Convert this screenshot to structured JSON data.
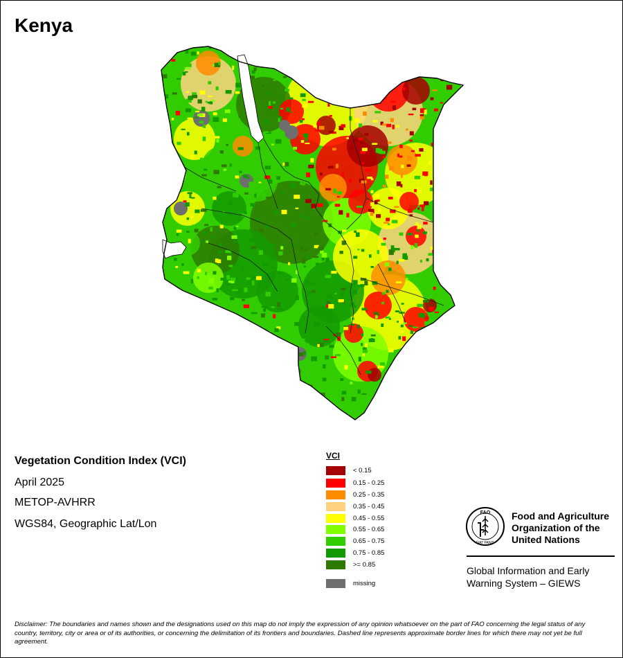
{
  "country": "Kenya",
  "map": {
    "title": "Vegetation Condition Index (VCI)",
    "period": "April 2025",
    "sensor": "METOP-AVHRR",
    "projection": "WGS84, Geographic Lat/Lon"
  },
  "legend": {
    "title": "VCI",
    "classes": [
      {
        "label": "< 0.15",
        "color": "#a50000"
      },
      {
        "label": "0.15 - 0.25",
        "color": "#ff0000"
      },
      {
        "label": "0.25 - 0.35",
        "color": "#ff8c00"
      },
      {
        "label": "0.35 - 0.45",
        "color": "#ffd27f"
      },
      {
        "label": "0.45 - 0.55",
        "color": "#ffff00"
      },
      {
        "label": "0.55 - 0.65",
        "color": "#7fff00"
      },
      {
        "label": "0.65 - 0.75",
        "color": "#32cd00"
      },
      {
        "label": "0.75 - 0.85",
        "color": "#139a00"
      },
      {
        "label": ">= 0.85",
        "color": "#2e7a00"
      }
    ],
    "missing": {
      "label": "missing",
      "color": "#6e6e6e"
    }
  },
  "organization": {
    "logo_top": "FAO",
    "logo_bottom": "FIAT PANIS",
    "name_lines": [
      "Food and Agriculture",
      "Organization of the",
      "United Nations"
    ],
    "program_lines": [
      "Global Information and Early",
      "Warning System – GIEWS"
    ]
  },
  "disclaimer": "Disclaimer: The boundaries and names shown and the designations used on this map do not imply the expression of any opinion whatsoever on the part of FAO concerning the legal status of any country, territory, city or area or of its authorities, or concerning the delimitation of its frontiers and boundaries. Dashed line represents approximate border lines for which there may not yet be full agreement."
}
